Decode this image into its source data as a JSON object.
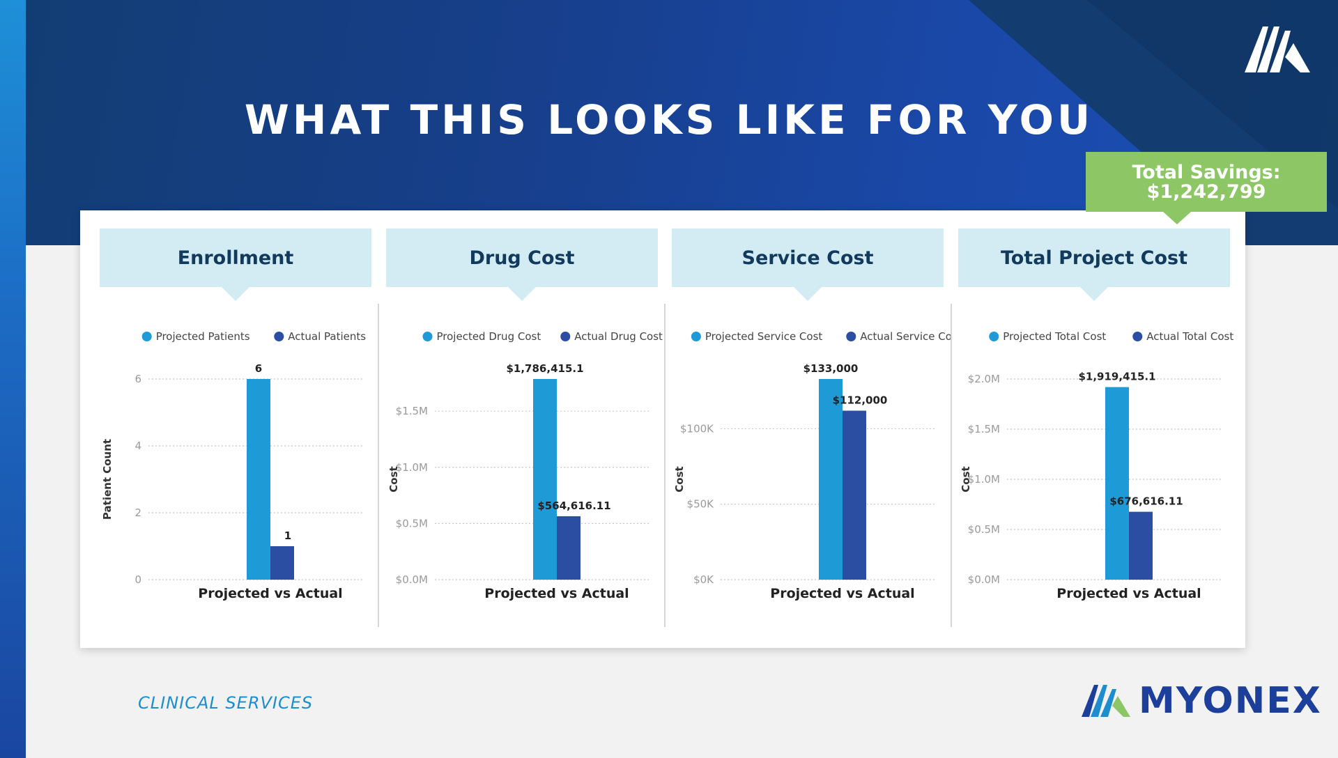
{
  "title": "WHAT THIS LOOKS LIKE FOR YOU",
  "savings": {
    "label": "Total Savings:",
    "value": "$1,242,799"
  },
  "footer": {
    "label": "CLINICAL SERVICES",
    "brand": "MYONEX"
  },
  "colors": {
    "projected": "#1e9ad6",
    "actual": "#2b4ea2",
    "header_band": "#d3ecf3",
    "savings_box": "#8cc665",
    "navy": "#153f8a"
  },
  "sections": [
    {
      "title": "Enrollment"
    },
    {
      "title": "Drug Cost"
    },
    {
      "title": "Service Cost"
    },
    {
      "title": "Total Project Cost"
    }
  ],
  "chart_data": [
    {
      "type": "bar",
      "categories": [
        "Projected vs Actual"
      ],
      "series": [
        {
          "name": "Projected Patients",
          "values": [
            6
          ],
          "label": "6"
        },
        {
          "name": "Actual Patients",
          "values": [
            1
          ],
          "label": "1"
        }
      ],
      "xlabel": "Projected vs Actual",
      "ylabel": "Patient Count",
      "ylim": [
        0,
        6
      ],
      "yticks": [
        0,
        2,
        4,
        6
      ],
      "ytick_labels": [
        "0",
        "2",
        "4",
        "6"
      ],
      "grid": true,
      "legend": "top"
    },
    {
      "type": "bar",
      "categories": [
        "Projected vs Actual"
      ],
      "series": [
        {
          "name": "Projected Drug Cost",
          "values": [
            1786415.1
          ],
          "label": "$1,786,415.1"
        },
        {
          "name": "Actual Drug Cost",
          "values": [
            564616.11
          ],
          "label": "$564,616.11"
        }
      ],
      "xlabel": "Projected vs Actual",
      "ylabel": "Cost",
      "ylim": [
        0,
        1786415.1
      ],
      "yticks": [
        0,
        500000,
        1000000,
        1500000
      ],
      "ytick_labels": [
        "$0.0M",
        "$0.5M",
        "$1.0M",
        "$1.5M"
      ],
      "grid": true,
      "legend": "top"
    },
    {
      "type": "bar",
      "categories": [
        "Projected vs Actual"
      ],
      "series": [
        {
          "name": "Projected Service Cost",
          "values": [
            133000
          ],
          "label": "$133,000"
        },
        {
          "name": "Actual Service Cost",
          "values": [
            112000
          ],
          "label": "$112,000"
        }
      ],
      "xlabel": "Projected vs Actual",
      "ylabel": "Cost",
      "ylim": [
        0,
        133000
      ],
      "yticks": [
        0,
        50000,
        100000
      ],
      "ytick_labels": [
        "$0K",
        "$50K",
        "$100K"
      ],
      "grid": true,
      "legend": "top"
    },
    {
      "type": "bar",
      "categories": [
        "Projected vs Actual"
      ],
      "series": [
        {
          "name": "Projected Total Cost",
          "values": [
            1919415.1
          ],
          "label": "$1,919,415.1"
        },
        {
          "name": "Actual Total Cost",
          "values": [
            676616.11
          ],
          "label": "$676,616.11"
        }
      ],
      "xlabel": "Projected vs Actual",
      "ylabel": "Cost",
      "ylim": [
        0,
        2000000
      ],
      "yticks": [
        0,
        500000,
        1000000,
        1500000,
        2000000
      ],
      "ytick_labels": [
        "$0.0M",
        "$0.5M",
        "$1.0M",
        "$1.5M",
        "$2.0M"
      ],
      "grid": true,
      "legend": "top"
    }
  ]
}
